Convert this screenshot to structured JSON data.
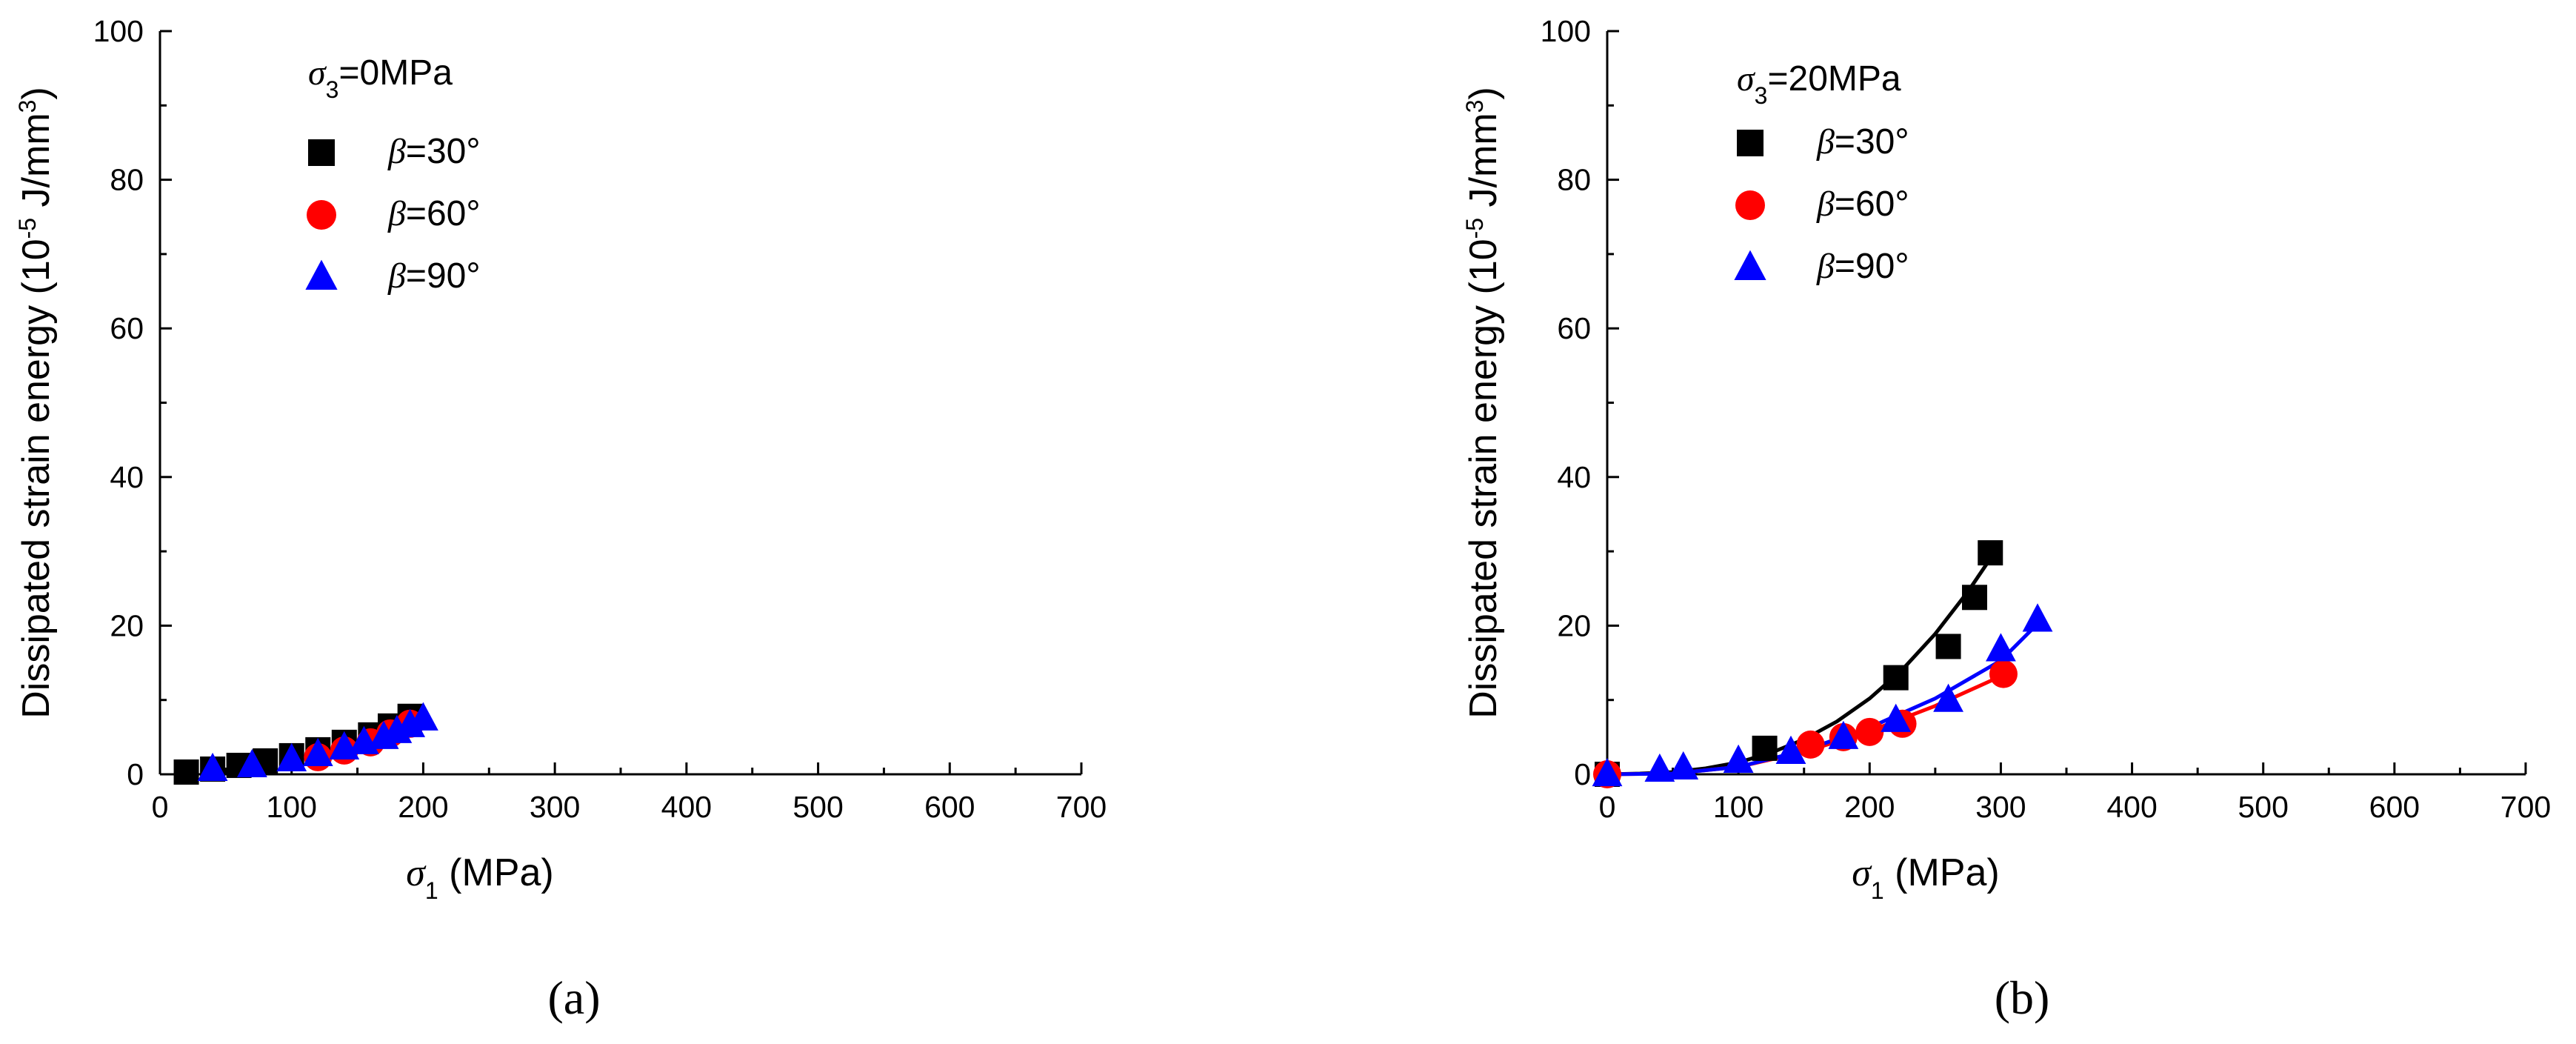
{
  "chart_data": [
    {
      "type": "scatter",
      "panel": "a",
      "caption": "(a)",
      "xlabel_symbol": "σ",
      "xlabel_sub": "1",
      "xlabel_unit": " (MPa)",
      "ylabel_main": "Dissipated strain energy (10",
      "ylabel_sup": "-5",
      "ylabel_tail": " J/mm",
      "ylabel_sup2": "3",
      "ylabel_end": ")",
      "xlim": [
        0,
        700
      ],
      "ylim": [
        0,
        100
      ],
      "xticks": [
        "0",
        "100",
        "200",
        "300",
        "400",
        "500",
        "600",
        "700"
      ],
      "yticks": [
        "0",
        "20",
        "40",
        "60",
        "80",
        "100"
      ],
      "legend_title_symbol": "σ",
      "legend_title_sub": "3",
      "legend_title_value": "=0MPa",
      "legend_position": "top-left",
      "grid": false,
      "series": [
        {
          "name": "β=30°",
          "symbol": "β",
          "value": "=30°",
          "marker": "square",
          "color": "#000000",
          "x": [
            20,
            40,
            60,
            80,
            100,
            120,
            140,
            160,
            175,
            190
          ],
          "y": [
            0.3,
            0.7,
            1.2,
            1.8,
            2.5,
            3.3,
            4.3,
            5.3,
            6.5,
            7.8
          ]
        },
        {
          "name": "β=60°",
          "symbol": "β",
          "value": "=60°",
          "marker": "circle",
          "color": "#ff0000",
          "x": [
            120,
            140,
            160,
            175,
            190
          ],
          "y": [
            2.3,
            3.2,
            4.3,
            5.5,
            6.8
          ]
        },
        {
          "name": "β=90°",
          "symbol": "β",
          "value": "=90°",
          "marker": "triangle",
          "color": "#0000ff",
          "x": [
            40,
            70,
            100,
            120,
            140,
            155,
            170,
            180,
            190,
            200
          ],
          "y": [
            0.7,
            1.2,
            2.0,
            2.7,
            3.6,
            4.3,
            5.0,
            5.8,
            6.6,
            7.5
          ]
        }
      ],
      "fits": []
    },
    {
      "type": "scatter",
      "panel": "b",
      "caption": "(b)",
      "xlabel_symbol": "σ",
      "xlabel_sub": "1",
      "xlabel_unit": " (MPa)",
      "ylabel_main": "Dissipated strain energy (10",
      "ylabel_sup": "-5",
      "ylabel_tail": " J/mm",
      "ylabel_sup2": "3",
      "ylabel_end": ")",
      "xlim": [
        0,
        700
      ],
      "ylim": [
        0,
        100
      ],
      "xticks": [
        "0",
        "100",
        "200",
        "300",
        "400",
        "500",
        "600",
        "700"
      ],
      "yticks": [
        "0",
        "20",
        "40",
        "60",
        "80",
        "100"
      ],
      "legend_title_symbol": "σ",
      "legend_title_sub": "3",
      "legend_title_value": "=20MPa",
      "legend_position": "top-left",
      "grid": false,
      "series": [
        {
          "name": "β=30°",
          "symbol": "β",
          "value": "=30°",
          "marker": "square",
          "color": "#000000",
          "x": [
            0,
            120,
            220,
            260,
            280,
            292
          ],
          "y": [
            0,
            3.5,
            13.0,
            17.2,
            23.8,
            29.8
          ]
        },
        {
          "name": "β=60°",
          "symbol": "β",
          "value": "=60°",
          "marker": "circle",
          "color": "#ff0000",
          "x": [
            0,
            155,
            180,
            200,
            225,
            302
          ],
          "y": [
            0,
            4.0,
            5.0,
            5.7,
            6.8,
            13.5
          ]
        },
        {
          "name": "β=90°",
          "symbol": "β",
          "value": "=90°",
          "marker": "triangle",
          "color": "#0000ff",
          "x": [
            0,
            40,
            58,
            100,
            140,
            180,
            220,
            260,
            300,
            328
          ],
          "y": [
            0,
            0.6,
            0.9,
            1.8,
            3.0,
            5.0,
            7.3,
            10.0,
            16.8,
            20.8
          ]
        }
      ],
      "fits": [
        {
          "color": "#000000",
          "x": [
            0,
            25,
            50,
            75,
            100,
            125,
            150,
            175,
            200,
            225,
            250,
            275,
            295
          ],
          "y": [
            0,
            0.1,
            0.3,
            0.8,
            1.6,
            2.9,
            4.7,
            7.1,
            10.2,
            14.1,
            18.9,
            24.6,
            29.8
          ]
        },
        {
          "color": "#ff0000",
          "x": [
            0,
            50,
            100,
            150,
            200,
            250,
            305
          ],
          "y": [
            0,
            0.1,
            1.0,
            3.0,
            5.8,
            9.2,
            13.6
          ]
        },
        {
          "color": "#0000ff",
          "x": [
            0,
            50,
            100,
            150,
            200,
            250,
            300,
            330
          ],
          "y": [
            0,
            0.1,
            1.0,
            3.2,
            6.3,
            10.2,
            15.3,
            20.6
          ]
        }
      ]
    }
  ]
}
